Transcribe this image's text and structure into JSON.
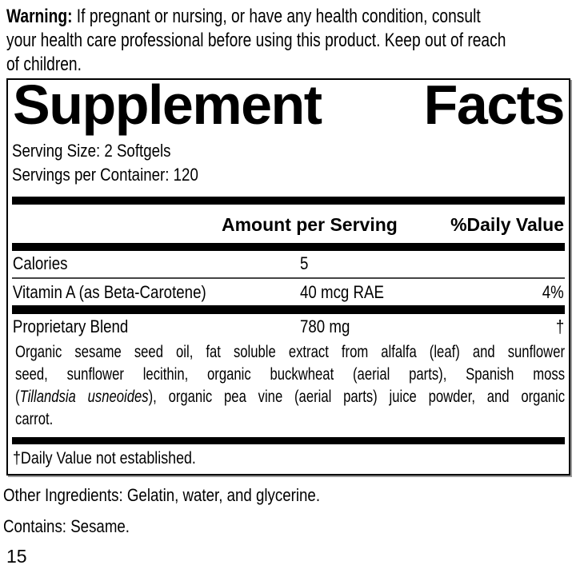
{
  "warning": {
    "label": "Warning:",
    "line1_rest": " If pregnant or nursing, or have any health condition, consult",
    "line2": "your health care professional before using this product. Keep out of reach",
    "line3": "of children."
  },
  "panel": {
    "title_left": "Supplement",
    "title_right": "Facts",
    "serving_size": "Serving Size: 2 Softgels",
    "servings_per_container": "Servings per Container: 120",
    "columns": {
      "amount": "Amount per Serving",
      "daily_value": "%Daily Value"
    },
    "rows": [
      {
        "name": "Calories",
        "amount": "5",
        "daily_value": ""
      },
      {
        "name": "Vitamin A (as Beta-Carotene)",
        "amount": "40 mcg RAE",
        "daily_value": "4%"
      },
      {
        "name": "Proprietary Blend",
        "amount": "780 mg",
        "daily_value": "†"
      }
    ],
    "blend_description_lines": [
      [
        {
          "t": "Organic sesame seed oil, fat soluble extract from alfalfa (leaf) and sunflower"
        }
      ],
      [
        {
          "t": "seed, sunflower lecithin, organic buckwheat (aerial parts), Spanish moss"
        }
      ],
      [
        {
          "t": "("
        },
        {
          "t": "Tillandsia usneoides",
          "i": true
        },
        {
          "t": "), organic pea vine (aerial parts) juice powder, and organic"
        }
      ],
      [
        {
          "t": "carrot."
        }
      ]
    ],
    "footnote": "†Daily Value not established."
  },
  "footer": {
    "other_ingredients": "Other Ingredients: Gelatin, water, and glycerine.",
    "contains": "Contains: Sesame.",
    "page_number": "15"
  },
  "colors": {
    "text": "#000000",
    "background": "#ffffff",
    "bar": "#000000",
    "border": "#000000",
    "border_shadow": "#999999",
    "thin_rule": "#444444"
  }
}
